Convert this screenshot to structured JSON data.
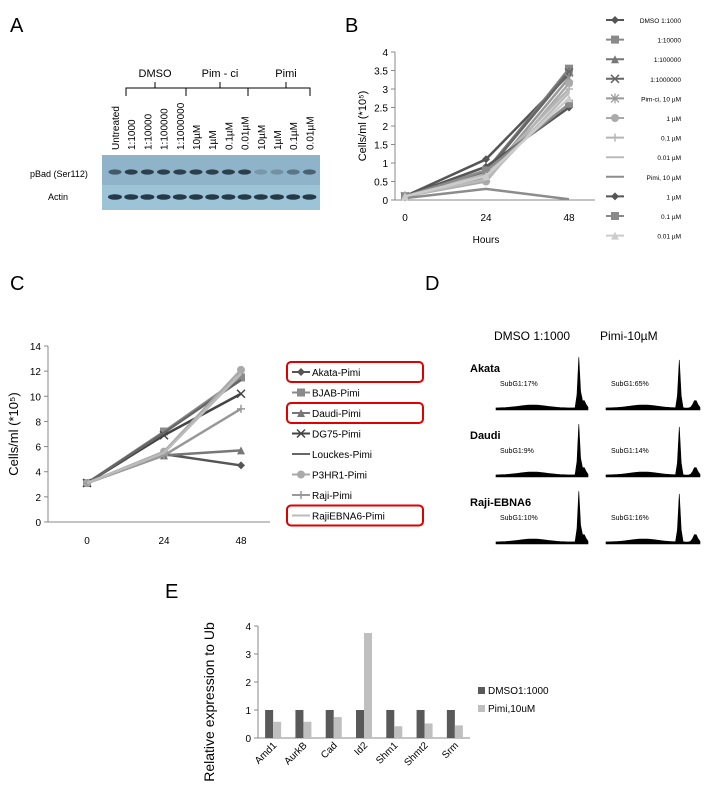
{
  "panels": {
    "A": {
      "letter": "A",
      "groups": [
        "DMSO",
        "Pim - ci",
        "Pimi"
      ],
      "lanes": [
        "Untreated",
        "1:1000",
        "1:10000",
        "1:100000",
        "1:1000000",
        "10µM",
        "1µM",
        "0.1µM",
        "0.01µM",
        "10µM",
        "1µM",
        "0.1µM",
        "0.01µM"
      ],
      "rows": [
        "pBad (Ser112)",
        "Actin"
      ]
    },
    "B": {
      "letter": "B"
    },
    "C": {
      "letter": "C"
    },
    "D": {
      "letter": "D",
      "conditions": [
        "DMSO 1:1000",
        "Pimi-10µM"
      ],
      "rows": [
        {
          "cell": "Akata",
          "left": "SubG1:17%",
          "right": "SubG1:65%"
        },
        {
          "cell": "Daudi",
          "left": "SubG1:9%",
          "right": "SubG1:14%"
        },
        {
          "cell": "Raji-EBNA6",
          "left": "SubG1:10%",
          "right": "SubG1:16%"
        }
      ]
    },
    "E": {
      "letter": "E"
    }
  },
  "chart_data": [
    {
      "id": "B",
      "type": "line",
      "x": [
        0,
        24,
        48
      ],
      "xticks": [
        "0",
        "24",
        "48"
      ],
      "xlabel": "Hours",
      "ylabel": "Cells/ml (*10⁵)",
      "ylim": [
        0,
        4
      ],
      "yticks": [
        "0",
        "0.5",
        "1",
        "1.5",
        "2",
        "2.5",
        "3",
        "3.5",
        "4"
      ],
      "series": [
        {
          "name": "DMSO 1:1000",
          "values": [
            0.1,
            1.1,
            3.4
          ],
          "color": "#555555",
          "marker": "diamond"
        },
        {
          "name": "1:10000",
          "values": [
            0.1,
            0.75,
            3.55
          ],
          "color": "#8a8a8a",
          "marker": "square"
        },
        {
          "name": "1:100000",
          "values": [
            0.1,
            0.8,
            3.5
          ],
          "color": "#777777",
          "marker": "triangle"
        },
        {
          "name": "1:1000000",
          "values": [
            0.1,
            0.75,
            3.45
          ],
          "color": "#666666",
          "marker": "x"
        },
        {
          "name": "Pim-ci, 10 µM",
          "values": [
            0.1,
            0.6,
            3.3
          ],
          "color": "#999999",
          "marker": "star"
        },
        {
          "name": "1 µM",
          "values": [
            0.1,
            0.5,
            3.15
          ],
          "color": "#aaaaaa",
          "marker": "circle"
        },
        {
          "name": "0.1 µM",
          "values": [
            0.1,
            0.7,
            3.0
          ],
          "color": "#b5b5b5",
          "marker": "plus"
        },
        {
          "name": "0.01 µM",
          "values": [
            0.1,
            0.55,
            2.9
          ],
          "color": "#bbbbbb",
          "marker": "none"
        },
        {
          "name": "Pimi,  10 µM",
          "values": [
            0.05,
            0.3,
            0.02
          ],
          "color": "#8c8c8c",
          "marker": "none"
        },
        {
          "name": "1 µM",
          "values": [
            0.1,
            0.9,
            2.5
          ],
          "color": "#555555",
          "marker": "diamond"
        },
        {
          "name": "0.1 µM",
          "values": [
            0.1,
            0.8,
            2.6
          ],
          "color": "#8a8a8a",
          "marker": "square"
        },
        {
          "name": "0.01 µM",
          "values": [
            0.1,
            0.65,
            2.75
          ],
          "color": "#cccccc",
          "marker": "triangle"
        }
      ]
    },
    {
      "id": "C",
      "type": "line",
      "x": [
        0,
        24,
        48
      ],
      "xticks": [
        "0",
        "24",
        "48"
      ],
      "xlabel": "",
      "ylabel": "Cells/ml (*10⁵)",
      "ylim": [
        0,
        14
      ],
      "yticks": [
        "0",
        "2",
        "4",
        "6",
        "8",
        "10",
        "12",
        "14"
      ],
      "series": [
        {
          "name": "Akata-Pimi",
          "values": [
            3.1,
            5.4,
            4.5
          ],
          "color": "#555555",
          "marker": "diamond",
          "highlight": true
        },
        {
          "name": "BJAB-Pimi",
          "values": [
            3.1,
            7.2,
            11.5
          ],
          "color": "#8a8a8a",
          "marker": "square",
          "highlight": false
        },
        {
          "name": "Daudi-Pimi",
          "values": [
            3.1,
            5.3,
            5.7
          ],
          "color": "#777777",
          "marker": "triangle",
          "highlight": true
        },
        {
          "name": "DG75-Pimi",
          "values": [
            3.1,
            6.9,
            10.2
          ],
          "color": "#444444",
          "marker": "x",
          "highlight": false
        },
        {
          "name": "Louckes-Pimi",
          "values": [
            3.1,
            7.1,
            11.3
          ],
          "color": "#666666",
          "marker": "none",
          "highlight": false
        },
        {
          "name": "P3HR1-Pimi",
          "values": [
            3.1,
            5.6,
            12.1
          ],
          "color": "#aaaaaa",
          "marker": "circle",
          "highlight": false
        },
        {
          "name": "Raji-Pimi",
          "values": [
            3.1,
            5.3,
            9.0
          ],
          "color": "#999999",
          "marker": "plus",
          "highlight": false
        },
        {
          "name": "RajiEBNA6-Pimi",
          "values": [
            3.1,
            5.5,
            11.8
          ],
          "color": "#bbbbbb",
          "marker": "none",
          "highlight": true
        }
      ]
    },
    {
      "id": "E",
      "type": "bar",
      "categories": [
        "Amd1",
        "AurkB",
        "Cad",
        "Id2",
        "Shm1",
        "Shmt2",
        "Srm"
      ],
      "ylabel": "Relative expression to Ub",
      "ylim": [
        0,
        4
      ],
      "yticks": [
        "0",
        "1",
        "2",
        "3",
        "4"
      ],
      "series": [
        {
          "name": "DMSO1:1000",
          "values": [
            1,
            1,
            1,
            1,
            1,
            1,
            1
          ],
          "color": "#595959"
        },
        {
          "name": "Pimi,10uM",
          "values": [
            0.58,
            0.58,
            0.75,
            3.75,
            0.42,
            0.52,
            0.45
          ],
          "color": "#bfbfbf"
        }
      ]
    }
  ]
}
